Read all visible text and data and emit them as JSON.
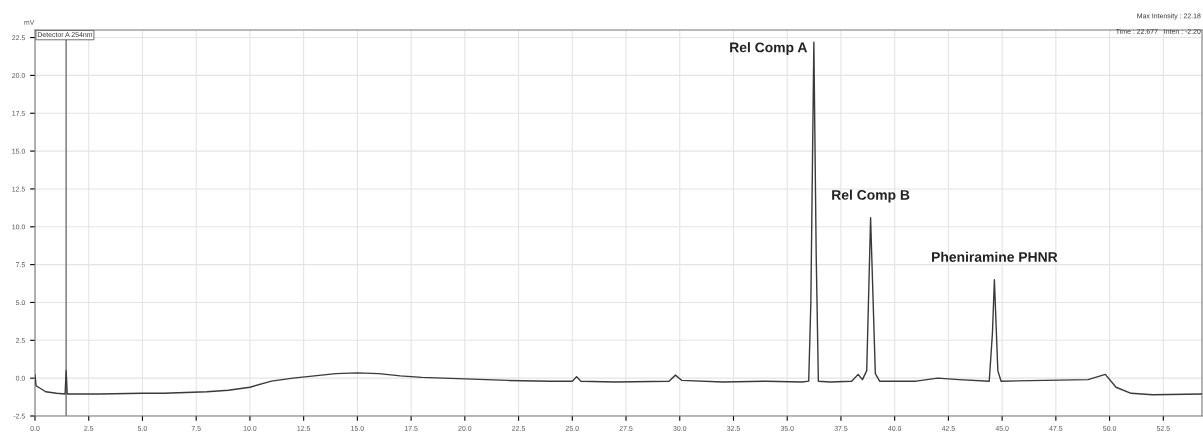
{
  "chart_data": {
    "type": "line",
    "ylabel": "mV",
    "series": [
      {
        "color": "#3a3a3a",
        "x": [
          0.0,
          0.05,
          0.5,
          1.0,
          1.4,
          1.45,
          1.5,
          3,
          5,
          6,
          8,
          9,
          10,
          11,
          12,
          13,
          14,
          15,
          16,
          17,
          18,
          20,
          22,
          24,
          25.0,
          25.2,
          25.4,
          27,
          29.5,
          29.8,
          30.1,
          32,
          34,
          35.7,
          36.0,
          36.1,
          36.24,
          36.35,
          36.45,
          37,
          38.0,
          38.3,
          38.5,
          38.7,
          38.88,
          39.1,
          39.3,
          41,
          42,
          43,
          44.4,
          44.55,
          44.64,
          44.8,
          44.95,
          47,
          49,
          49.8,
          50.3,
          51,
          52,
          54.3
        ],
        "values": [
          0.2,
          -0.5,
          -0.9,
          -1.0,
          -1.05,
          0.5,
          -1.05,
          -1.05,
          -1.0,
          -1.0,
          -0.9,
          -0.8,
          -0.6,
          -0.2,
          0.0,
          0.15,
          0.3,
          0.35,
          0.3,
          0.15,
          0.05,
          -0.05,
          -0.15,
          -0.2,
          -0.2,
          0.1,
          -0.2,
          -0.25,
          -0.2,
          0.2,
          -0.15,
          -0.25,
          -0.2,
          -0.25,
          -0.2,
          5.0,
          22.2,
          8.0,
          -0.2,
          -0.25,
          -0.2,
          0.25,
          -0.1,
          0.5,
          10.6,
          0.3,
          -0.2,
          -0.2,
          0.0,
          -0.1,
          -0.2,
          3.0,
          6.5,
          0.5,
          -0.2,
          -0.15,
          -0.1,
          0.25,
          -0.6,
          -1.0,
          -1.1,
          -1.05
        ]
      }
    ],
    "xlim": [
      0,
      54.3
    ],
    "xticks": [
      {
        "value": 0,
        "label": "0.0"
      },
      2.5,
      {
        "value": 5,
        "label": "5.0"
      },
      7.5,
      {
        "value": 10,
        "label": "10.0"
      },
      12.5,
      {
        "value": 15,
        "label": "15.0"
      },
      17.5,
      {
        "value": 20,
        "label": "20.0"
      },
      22.5,
      {
        "value": 25,
        "label": "25.0"
      },
      27.5,
      {
        "value": 30,
        "label": "30.0"
      },
      32.5,
      {
        "value": 35,
        "label": "35.0"
      },
      37.5,
      {
        "value": 40,
        "label": "40.0"
      },
      42.5,
      {
        "value": 45,
        "label": "45.0"
      },
      47.5,
      {
        "value": 50,
        "label": "50.0"
      },
      52.5
    ],
    "ylim": [
      -2.5,
      23.0
    ],
    "yticks": [
      -2.5,
      {
        "value": 0,
        "label": "0.0"
      },
      2.5,
      {
        "value": 5,
        "label": "5.0"
      },
      7.5,
      {
        "value": 10,
        "label": "10.0"
      },
      12.5,
      {
        "value": 15,
        "label": "15.0"
      },
      17.5,
      {
        "value": 20,
        "label": "20.0"
      },
      22.5
    ],
    "grid": true,
    "ref_lines": [
      {
        "axis": "x",
        "value": 1.45,
        "color": "#888888"
      }
    ],
    "annotations": [
      {
        "text": "Rel Comp A",
        "x": 36.24,
        "y": 22.2
      },
      {
        "text": "Rel Comp B",
        "x": 38.88,
        "y": 10.6
      },
      {
        "text": "Pheniramine PHNR",
        "x": 44.64,
        "y": 6.5
      },
      "Detector A 254nm",
      "Max Intensity : 22.18",
      "Time : 22.677   Inten : -2.20"
    ]
  }
}
